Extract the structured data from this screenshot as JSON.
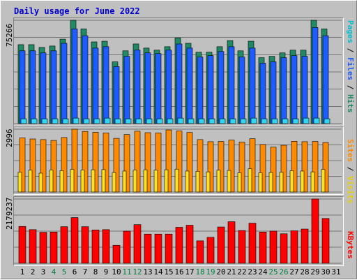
{
  "title": "Daily usage for June 2022",
  "colors": {
    "pages": "#1e5cff",
    "files": "#1f8a63",
    "hits": "#33d4f0",
    "sites": "#ff8a00",
    "visits": "#ffe020",
    "kbytes": "#ff0000",
    "weekend_day": "#008040",
    "weekday_day": "#000000",
    "grid": "#000000"
  },
  "chart_data": [
    {
      "type": "bar",
      "panel": "top",
      "ymax_label": "75266",
      "ylim": [
        0,
        75266
      ],
      "right_label": [
        "Pages",
        "Files",
        "Hits"
      ],
      "categories": [
        "1",
        "2",
        "3",
        "4",
        "5",
        "6",
        "7",
        "8",
        "9",
        "10",
        "11",
        "12",
        "13",
        "14",
        "15",
        "16",
        "17",
        "18",
        "19",
        "20",
        "21",
        "22",
        "23",
        "24",
        "25",
        "26",
        "27",
        "28",
        "29",
        "30",
        "31"
      ],
      "series": [
        {
          "name": "Hits",
          "values": [
            57500,
            57500,
            55500,
            56500,
            61500,
            75266,
            69000,
            59500,
            60000,
            45000,
            53000,
            58000,
            55000,
            53500,
            56000,
            62500,
            58500,
            52000,
            52000,
            56000,
            60500,
            53000,
            60000,
            48000,
            49000,
            51500,
            53500,
            53500,
            75266,
            69000,
            0
          ]
        },
        {
          "name": "Files",
          "values": [
            53000,
            53000,
            51500,
            53000,
            58500,
            69000,
            64000,
            55000,
            56000,
            41500,
            49000,
            53500,
            51500,
            51000,
            53500,
            58000,
            55000,
            48500,
            49500,
            52500,
            56000,
            48500,
            55000,
            44000,
            45000,
            48000,
            49500,
            49000,
            70000,
            64000,
            0
          ]
        },
        {
          "name": "Pages",
          "values": [
            3500,
            3500,
            3500,
            3500,
            3500,
            4000,
            3500,
            3500,
            4000,
            3500,
            3500,
            3500,
            3500,
            3500,
            3500,
            4000,
            3500,
            3500,
            3500,
            3500,
            3500,
            3500,
            4000,
            3500,
            3500,
            3500,
            3500,
            4000,
            4000,
            3500,
            0
          ]
        }
      ]
    },
    {
      "type": "bar",
      "panel": "middle",
      "ymax_label": "2996",
      "ylim": [
        0,
        2996
      ],
      "right_label": [
        "Sites",
        "Visits"
      ],
      "categories": [
        "1",
        "2",
        "3",
        "4",
        "5",
        "6",
        "7",
        "8",
        "9",
        "10",
        "11",
        "12",
        "13",
        "14",
        "15",
        "16",
        "17",
        "18",
        "19",
        "20",
        "21",
        "22",
        "23",
        "24",
        "25",
        "26",
        "27",
        "28",
        "29",
        "30",
        "31"
      ],
      "series": [
        {
          "name": "Sites",
          "values": [
            2580,
            2530,
            2500,
            2460,
            2600,
            2996,
            2890,
            2850,
            2820,
            2560,
            2740,
            2900,
            2830,
            2820,
            2960,
            2910,
            2840,
            2500,
            2400,
            2410,
            2480,
            2380,
            2540,
            2270,
            2140,
            2230,
            2420,
            2400,
            2410,
            2360,
            0
          ]
        },
        {
          "name": "Visits",
          "values": [
            940,
            1040,
            900,
            1050,
            1020,
            1080,
            1050,
            1060,
            1070,
            930,
            1000,
            1050,
            1060,
            1040,
            1060,
            1090,
            1000,
            990,
            960,
            1040,
            1030,
            920,
            1110,
            920,
            930,
            940,
            1020,
            1000,
            960,
            1080,
            0
          ]
        }
      ]
    },
    {
      "type": "bar",
      "panel": "bottom",
      "ymax_label": "2179237",
      "ylim": [
        0,
        2179237
      ],
      "right_label": [
        "KBytes"
      ],
      "categories": [
        "1",
        "2",
        "3",
        "4",
        "5",
        "6",
        "7",
        "8",
        "9",
        "10",
        "11",
        "12",
        "13",
        "14",
        "15",
        "16",
        "17",
        "18",
        "19",
        "20",
        "21",
        "22",
        "23",
        "24",
        "25",
        "26",
        "27",
        "28",
        "29",
        "30",
        "31"
      ],
      "series": [
        {
          "name": "KBytes",
          "values": [
            1250000,
            1140000,
            1050000,
            1060000,
            1240000,
            1550000,
            1240000,
            1130000,
            1140000,
            610000,
            1090000,
            1310000,
            990000,
            990000,
            990000,
            1220000,
            1290000,
            760000,
            880000,
            1230000,
            1410000,
            1110000,
            1360000,
            1060000,
            1090000,
            1000000,
            1100000,
            1160000,
            2179237,
            1520000,
            0
          ]
        }
      ]
    }
  ],
  "days": [
    "1",
    "2",
    "3",
    "4",
    "5",
    "6",
    "7",
    "8",
    "9",
    "10",
    "11",
    "12",
    "13",
    "14",
    "15",
    "16",
    "17",
    "18",
    "19",
    "20",
    "21",
    "22",
    "23",
    "24",
    "25",
    "26",
    "27",
    "28",
    "29",
    "30",
    "31"
  ],
  "weekend_days": [
    "4",
    "5",
    "11",
    "12",
    "18",
    "19",
    "25",
    "26"
  ]
}
